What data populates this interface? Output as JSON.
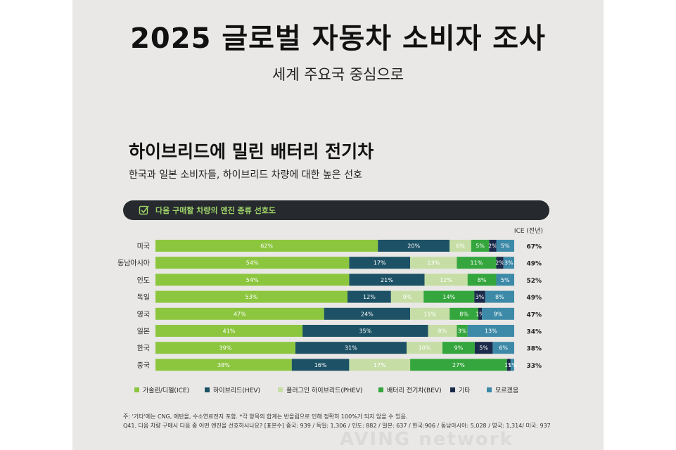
{
  "header": {
    "title": "2025 글로벌 자동차 소비자 조사",
    "subtitle": "세계 주요국 중심으로"
  },
  "section": {
    "title": "하이브리드에 밀린 배터리 전기차",
    "subtitle": "한국과 일본 소비자들, 하이브리드 차량에 대한 높은 선호"
  },
  "question": {
    "text": "다음 구매할 차량의 엔진 종류 선호도",
    "icon": "checkbox-icon"
  },
  "footnotes": [
    "주: '기타'에는 CNG, 에탄올, 수소연료전지 포함. *각 항목의 합계는 반올림으로 인해 정확히 100%가 되지 않을 수 있음.",
    "Q41. 다음 차량 구매시 다음 중 어떤 엔진을 선호하시나요? [표본수] 중국: 939 / 독일: 1,306 / 인도: 882 / 일본: 637 / 한국:906 / 동남아시아: 5,028 / 영국: 1,314/ 미국: 937"
  ],
  "watermark": "AVING network",
  "colors": {
    "ICE": "#8cc63f",
    "HEV": "#1d5266",
    "PHEV": "#c6dea6",
    "BEV": "#35a63d",
    "Other": "#1b2a4a",
    "Unknown": "#3d8aa8"
  },
  "chart_data": {
    "type": "bar",
    "orientation": "horizontal",
    "stacked": true,
    "categories": [
      "미국",
      "동남아시아",
      "인도",
      "독일",
      "영국",
      "일본",
      "한국",
      "중국"
    ],
    "series": [
      {
        "name": "가솔린/디젤(ICE)",
        "key": "ICE",
        "values": [
          62,
          54,
          54,
          53,
          47,
          41,
          39,
          38
        ]
      },
      {
        "name": "하이브리드(HEV)",
        "key": "HEV",
        "values": [
          20,
          17,
          21,
          12,
          24,
          35,
          31,
          16
        ]
      },
      {
        "name": "플러그인 하이브리드(PHEV)",
        "key": "PHEV",
        "values": [
          6,
          13,
          12,
          9,
          11,
          8,
          10,
          17
        ]
      },
      {
        "name": "배터리 전기차(BEV)",
        "key": "BEV",
        "values": [
          5,
          11,
          8,
          14,
          8,
          3,
          9,
          27
        ]
      },
      {
        "name": "기타",
        "key": "Other",
        "values": [
          2,
          2,
          0,
          3,
          1,
          0,
          5,
          1
        ]
      },
      {
        "name": "모르겠음",
        "key": "Unknown",
        "values": [
          5,
          3,
          5,
          8,
          9,
          13,
          6,
          1
        ]
      }
    ],
    "prev_year_header": "ICE (전년)",
    "prev_year_ice": [
      "67%",
      "49%",
      "52%",
      "49%",
      "47%",
      "34%",
      "38%",
      "33%"
    ],
    "legend_placement": "bottom",
    "grid": false,
    "xlim": [
      0,
      100
    ]
  }
}
